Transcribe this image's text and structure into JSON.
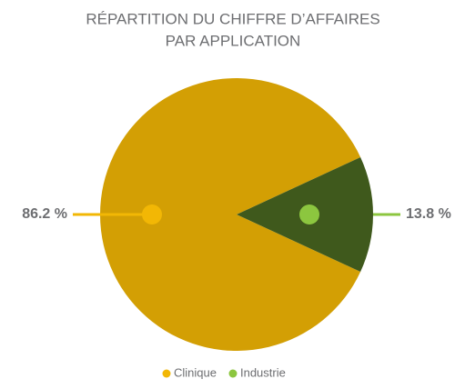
{
  "chart_data": {
    "type": "pie",
    "title": [
      "RÉPARTITION DU CHIFFRE D’AFFAIRES",
      "PAR APPLICATION"
    ],
    "categories": [
      "Clinique",
      "Industrie"
    ],
    "values": [
      86.2,
      13.8
    ],
    "value_labels": [
      "86.2 %",
      "13.8 %"
    ],
    "colors": [
      "#f2b705",
      "#8cc63f"
    ]
  }
}
